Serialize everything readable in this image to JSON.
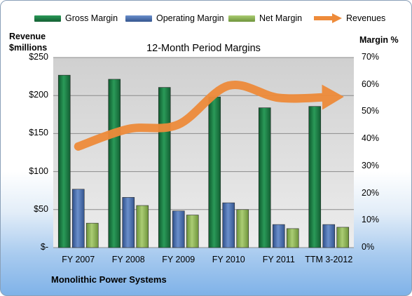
{
  "chart_data": {
    "type": "bar",
    "title": "12-Month Period Margins",
    "company": "Monolithic Power Systems",
    "categories": [
      "FY 2007",
      "FY 2008",
      "FY 2009",
      "FY 2010",
      "FY 2011",
      "TTM 3-2012"
    ],
    "left_axis": {
      "label_line1": "Revenue",
      "label_line2": "$millions",
      "range": [
        0,
        250
      ],
      "ticks": [
        "$-",
        "$50",
        "$100",
        "$150",
        "$200",
        "$250"
      ],
      "tick_values": [
        0,
        50,
        100,
        150,
        200,
        250
      ]
    },
    "right_axis": {
      "label": "Margin %",
      "range": [
        0,
        70
      ],
      "ticks": [
        "0%",
        "10%",
        "20%",
        "30%",
        "40%",
        "50%",
        "60%",
        "70%"
      ],
      "tick_values": [
        0,
        10,
        20,
        30,
        40,
        50,
        60,
        70
      ]
    },
    "series": [
      {
        "name": "Gross Margin",
        "type": "bar",
        "axis": "right",
        "color": "#1f7a45",
        "values": [
          63.5,
          62,
          59,
          55.5,
          51.5,
          52
        ]
      },
      {
        "name": "Operating Margin",
        "type": "bar",
        "axis": "right",
        "color": "#4a6fb0",
        "values": [
          21.5,
          18.5,
          13.5,
          16.5,
          8.5,
          8.5
        ]
      },
      {
        "name": "Net Margin",
        "type": "bar",
        "axis": "right",
        "color": "#8db552",
        "values": [
          9,
          15.5,
          12,
          14,
          7,
          7.5
        ]
      },
      {
        "name": "Revenues",
        "type": "line",
        "axis": "left",
        "color": "#ee8b3a",
        "values": [
          133,
          156,
          162,
          213,
          197,
          198
        ]
      }
    ],
    "grid": true,
    "legend_position": "top"
  }
}
